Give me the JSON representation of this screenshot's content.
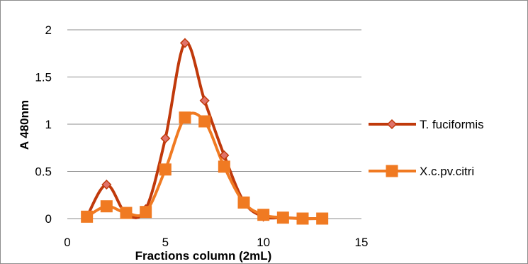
{
  "chart_data": {
    "type": "scatter",
    "xlabel": "Fractions column (2mL)",
    "ylabel": "A 480nm",
    "xlim": [
      0,
      15
    ],
    "ylim": [
      0,
      2
    ],
    "xticks": [
      0,
      5,
      10,
      15
    ],
    "yticks": [
      0,
      0.5,
      1,
      1.5,
      2
    ],
    "xtick_labels": [
      "0",
      "5",
      "10",
      "15"
    ],
    "ytick_labels": [
      "0",
      "0.5",
      "1",
      "1.5",
      "2"
    ],
    "grid": "horizontal",
    "smoothed_lines": true,
    "legend_position": "right",
    "series": [
      {
        "name": "T. fuciformis",
        "color": "#c0390b",
        "marker": "diamond",
        "x": [
          1,
          2,
          3,
          4,
          5,
          6,
          7,
          8,
          9,
          10,
          11,
          12,
          13
        ],
        "y": [
          0.02,
          0.36,
          0.05,
          0.1,
          0.85,
          1.86,
          1.25,
          0.67,
          0.18,
          0.02,
          0.01,
          0.0,
          0.0
        ]
      },
      {
        "name": "X.c.pv.citri",
        "color": "#f07a22",
        "marker": "square",
        "x": [
          1,
          2,
          3,
          4,
          5,
          6,
          7,
          8,
          9,
          10,
          11,
          12,
          13
        ],
        "y": [
          0.02,
          0.13,
          0.06,
          0.07,
          0.52,
          1.07,
          1.03,
          0.55,
          0.17,
          0.04,
          0.01,
          0.0,
          0.0
        ]
      }
    ]
  }
}
